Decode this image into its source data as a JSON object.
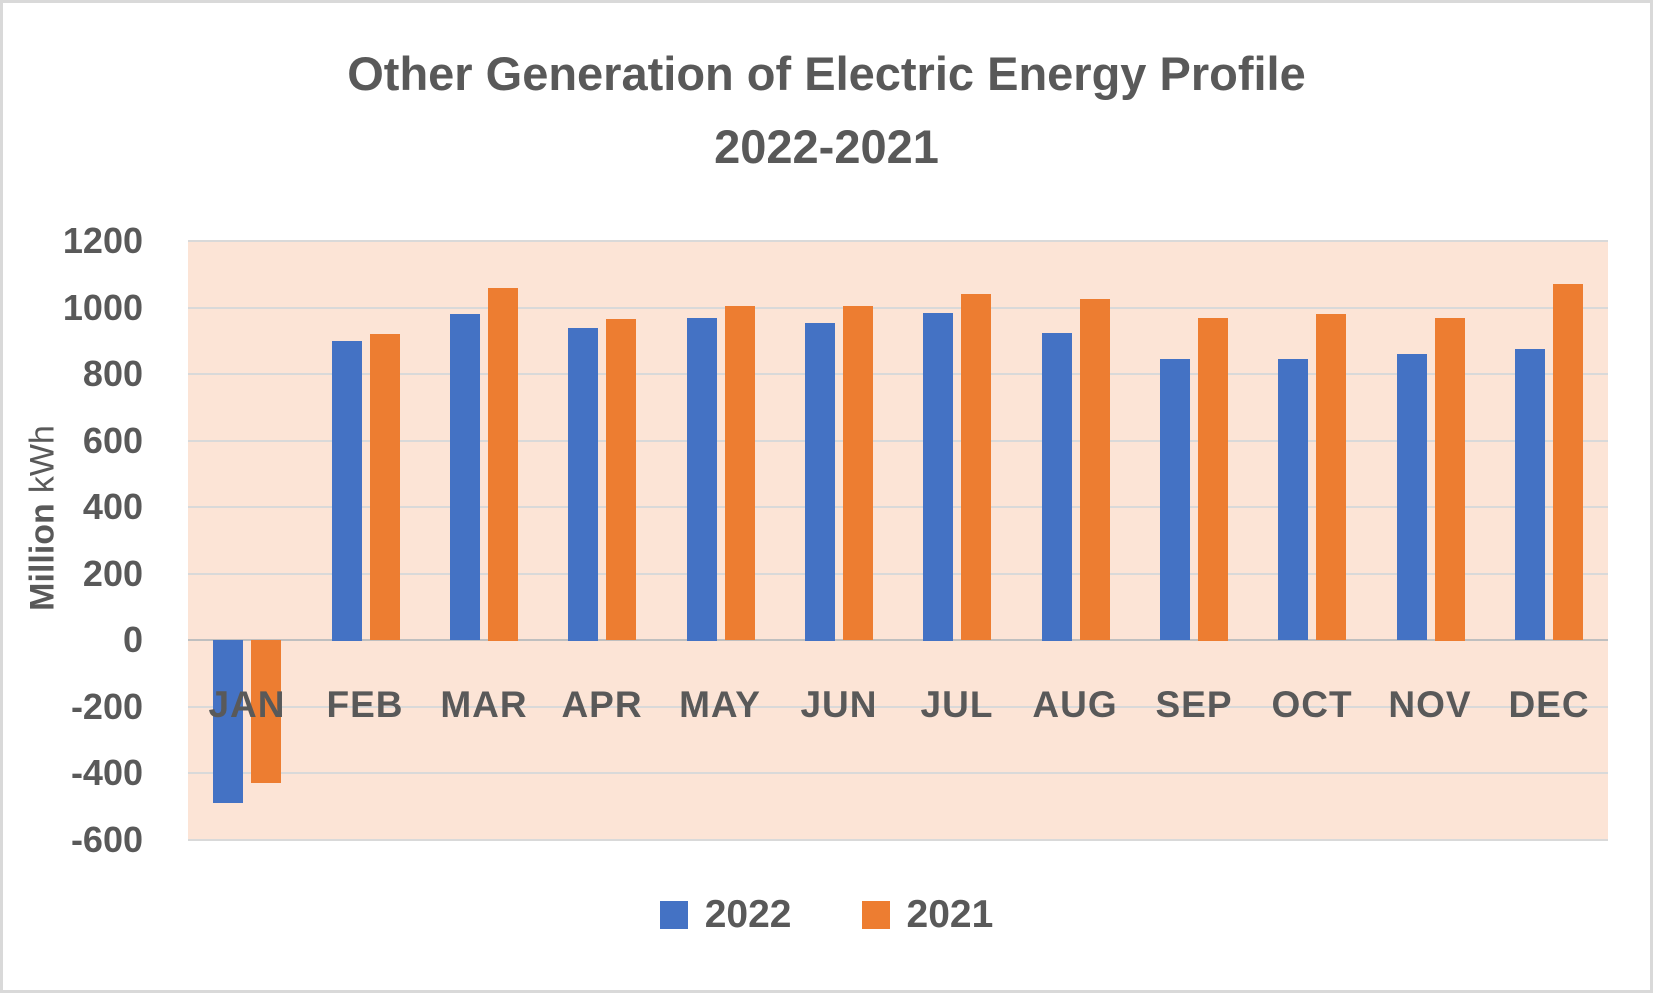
{
  "chart_data": {
    "type": "bar",
    "title_line1": "Other Generation of Electric Energy Profile",
    "title_line2": "2022-2021",
    "categories": [
      "JAN",
      "FEB",
      "MAR",
      "APR",
      "MAY",
      "JUN",
      "JUL",
      "AUG",
      "SEP",
      "OCT",
      "NOV",
      "DEC"
    ],
    "series": [
      {
        "name": "2022",
        "color": "#4472C4",
        "values": [
          -490,
          900,
          980,
          940,
          970,
          955,
          985,
          925,
          845,
          845,
          860,
          875
        ]
      },
      {
        "name": "2021",
        "color": "#ED7D31",
        "values": [
          -430,
          920,
          1060,
          965,
          1005,
          1005,
          1040,
          1025,
          970,
          980,
          970,
          1070
        ]
      }
    ],
    "ylabel_bold": "Million",
    "ylabel_regular": "kWh",
    "y_min": -600,
    "y_max": 1200,
    "y_step": 200,
    "y_ticks": [
      "1200",
      "1000",
      "800",
      "600",
      "400",
      "200",
      "0",
      "-200",
      "-400",
      "-600"
    ],
    "legend_position": "bottom",
    "grid": true,
    "plot_bg": "#FCE4D6",
    "gridline_color": "#D9D9D9",
    "zero_line_color": "#BFBFBF",
    "text_color": "#595959"
  }
}
